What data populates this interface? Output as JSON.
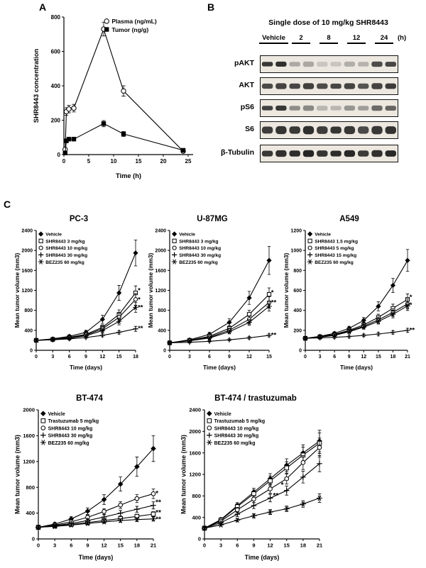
{
  "panels": {
    "a": "A",
    "b": "B",
    "c": "C"
  },
  "panel_b": {
    "title": "Single dose of 10 mg/kg SHR8443",
    "lanes": [
      "Vehicle",
      "2",
      "8",
      "12",
      "24"
    ],
    "lane_unit": "(h)",
    "proteins": [
      "pAKT",
      "AKT",
      "pS6",
      "S6",
      "β-Tubulin"
    ],
    "band_intensities": {
      "pAKT": [
        0.95,
        0.3,
        0.18,
        0.28,
        0.8
      ],
      "AKT": [
        0.85,
        0.8,
        0.82,
        0.8,
        0.85
      ],
      "pS6": [
        0.9,
        0.45,
        0.25,
        0.4,
        0.65
      ],
      "S6": [
        0.92,
        0.88,
        0.9,
        0.85,
        0.9
      ],
      "β-Tubulin": [
        0.95,
        0.93,
        0.95,
        0.93,
        0.95
      ]
    }
  },
  "chart_data": [
    {
      "id": "pk-curve",
      "type": "line",
      "title": "",
      "xlabel": "Time (h)",
      "ylabel": "SHR8443 concentration",
      "xlim": [
        0,
        26
      ],
      "ylim": [
        0,
        800
      ],
      "xticks": [
        0,
        5,
        10,
        15,
        20,
        25
      ],
      "yticks": [
        0,
        200,
        400,
        600,
        800
      ],
      "legend_position": "top-inside",
      "series": [
        {
          "name": "Plasma (ng/mL)",
          "marker": "circle-open",
          "x": [
            0.25,
            0.5,
            1,
            2,
            8,
            12,
            24
          ],
          "values": [
            30,
            250,
            265,
            270,
            730,
            370,
            20
          ],
          "err": [
            8,
            22,
            22,
            22,
            40,
            30,
            8
          ]
        },
        {
          "name": "Tumor (ng/g)",
          "marker": "square-filled",
          "x": [
            0.25,
            0.5,
            1,
            2,
            8,
            12,
            24
          ],
          "values": [
            10,
            80,
            90,
            90,
            180,
            120,
            25
          ],
          "err": [
            4,
            10,
            10,
            10,
            18,
            14,
            6
          ]
        }
      ],
      "annotations": []
    },
    {
      "id": "pc3",
      "type": "line",
      "title": "PC-3",
      "xlabel": "Time (days)",
      "ylabel": "Mean tumor volume (mm3)",
      "xlim": [
        0,
        18
      ],
      "ylim": [
        0,
        2400
      ],
      "xticks": [
        0,
        3,
        6,
        9,
        12,
        15,
        18
      ],
      "yticks": [
        0,
        400,
        800,
        1200,
        1600,
        2000,
        2400
      ],
      "x": [
        0,
        3,
        6,
        9,
        12,
        15,
        18
      ],
      "legend_position": "top-left",
      "series": [
        {
          "name": "Vehicle",
          "marker": "diamond-filled",
          "values": [
            200,
            230,
            280,
            360,
            620,
            1150,
            1950
          ],
          "err": [
            20,
            25,
            30,
            40,
            80,
            150,
            260
          ]
        },
        {
          "name": "SHR8443 3 mg/kg",
          "marker": "square-open",
          "values": [
            200,
            220,
            260,
            320,
            460,
            720,
            1150
          ],
          "err": [
            20,
            22,
            26,
            32,
            50,
            90,
            140
          ]
        },
        {
          "name": "SHR8443 10 mg/kg",
          "marker": "circle-open",
          "values": [
            200,
            218,
            252,
            305,
            430,
            660,
            1020
          ],
          "err": [
            20,
            22,
            25,
            30,
            45,
            80,
            120
          ]
        },
        {
          "name": "SHR8443 30 mg/kg",
          "marker": "plus",
          "values": [
            200,
            210,
            228,
            255,
            300,
            360,
            430
          ],
          "err": [
            20,
            20,
            22,
            24,
            28,
            35,
            50
          ]
        },
        {
          "name": "BEZ235 60 mg/kg",
          "marker": "asterisk",
          "values": [
            200,
            215,
            243,
            290,
            395,
            580,
            860
          ],
          "err": [
            20,
            22,
            24,
            28,
            40,
            70,
            100
          ]
        }
      ],
      "annotations": [
        {
          "x": 18.4,
          "y": 1190,
          "text": "*"
        },
        {
          "x": 18.4,
          "y": 1010,
          "text": "*"
        },
        {
          "x": 18.4,
          "y": 850,
          "text": "**"
        },
        {
          "x": 18.4,
          "y": 430,
          "text": "**"
        }
      ]
    },
    {
      "id": "u87mg",
      "type": "line",
      "title": "U-87MG",
      "xlabel": "Time (days)",
      "ylabel": "Mean tumor volume (mm3)",
      "xlim": [
        0,
        15
      ],
      "ylim": [
        0,
        2400
      ],
      "xticks": [
        0,
        3,
        6,
        9,
        12,
        15
      ],
      "yticks": [
        0,
        400,
        800,
        1200,
        1600,
        2000,
        2400
      ],
      "x": [
        0,
        3,
        6,
        9,
        12,
        15
      ],
      "legend_position": "top-left",
      "series": [
        {
          "name": "Vehicle",
          "marker": "diamond-filled",
          "values": [
            150,
            210,
            320,
            560,
            1050,
            1800
          ],
          "err": [
            15,
            25,
            40,
            70,
            130,
            280
          ]
        },
        {
          "name": "SHR8443 3 mg/kg",
          "marker": "square-open",
          "values": [
            150,
            200,
            280,
            440,
            720,
            1120
          ],
          "err": [
            15,
            22,
            32,
            50,
            80,
            130
          ]
        },
        {
          "name": "SHR8443 10 mg/kg",
          "marker": "circle-open",
          "values": [
            150,
            195,
            260,
            400,
            620,
            960
          ],
          "err": [
            15,
            20,
            28,
            45,
            70,
            110
          ]
        },
        {
          "name": "SHR8443 30 mg/kg",
          "marker": "plus",
          "values": [
            150,
            160,
            180,
            210,
            250,
            300
          ],
          "err": [
            15,
            16,
            18,
            20,
            24,
            30
          ]
        },
        {
          "name": "BEZ235 60 mg/kg",
          "marker": "asterisk",
          "values": [
            150,
            190,
            245,
            370,
            560,
            880
          ],
          "err": [
            15,
            19,
            26,
            40,
            60,
            95
          ]
        }
      ],
      "annotations": [
        {
          "x": 15.3,
          "y": 1150,
          "text": "*"
        },
        {
          "x": 15.3,
          "y": 950,
          "text": "**"
        },
        {
          "x": 15.3,
          "y": 300,
          "text": "**"
        }
      ]
    },
    {
      "id": "a549",
      "type": "line",
      "title": "A549",
      "xlabel": "Time (days)",
      "ylabel": "Mean tumor volume (mm3)",
      "xlim": [
        0,
        21
      ],
      "ylim": [
        0,
        1200
      ],
      "xticks": [
        0,
        3,
        6,
        9,
        12,
        15,
        18,
        21
      ],
      "yticks": [
        0,
        200,
        400,
        600,
        800,
        1000,
        1200
      ],
      "x": [
        0,
        3,
        6,
        9,
        12,
        15,
        18,
        21
      ],
      "legend_position": "top-left",
      "series": [
        {
          "name": "Vehicle",
          "marker": "diamond-filled",
          "values": [
            120,
            140,
            170,
            220,
            300,
            440,
            650,
            900
          ],
          "err": [
            10,
            12,
            15,
            20,
            28,
            45,
            70,
            110
          ]
        },
        {
          "name": "SHR8443 1.5 mg/kg",
          "marker": "square-open",
          "values": [
            120,
            136,
            160,
            200,
            255,
            330,
            420,
            510
          ],
          "err": [
            10,
            12,
            14,
            18,
            24,
            32,
            42,
            55
          ]
        },
        {
          "name": "SHR8443 5 mg/kg",
          "marker": "circle-open",
          "values": [
            120,
            133,
            155,
            192,
            242,
            305,
            380,
            465
          ],
          "err": [
            10,
            11,
            13,
            17,
            22,
            28,
            38,
            50
          ]
        },
        {
          "name": "SHR8443 15 mg/kg",
          "marker": "plus",
          "values": [
            120,
            124,
            130,
            138,
            150,
            163,
            180,
            200
          ],
          "err": [
            10,
            10,
            11,
            12,
            13,
            15,
            17,
            20
          ]
        },
        {
          "name": "BEZ235 60 mg/kg",
          "marker": "asterisk",
          "values": [
            120,
            131,
            150,
            186,
            232,
            290,
            360,
            445
          ],
          "err": [
            10,
            11,
            13,
            16,
            21,
            27,
            35,
            46
          ]
        }
      ],
      "annotations": [
        {
          "x": 21.4,
          "y": 530,
          "text": "*"
        },
        {
          "x": 21.4,
          "y": 450,
          "text": "*"
        },
        {
          "x": 21.4,
          "y": 200,
          "text": "**"
        }
      ]
    },
    {
      "id": "bt474",
      "type": "line",
      "title": "BT-474",
      "xlabel": "Time (days)",
      "ylabel": "Mean tumor volume (mm3)",
      "xlim": [
        0,
        21
      ],
      "ylim": [
        0,
        2000
      ],
      "xticks": [
        0,
        3,
        6,
        9,
        12,
        15,
        18,
        21
      ],
      "yticks": [
        0,
        400,
        800,
        1200,
        1600,
        2000
      ],
      "x": [
        0,
        3,
        6,
        9,
        12,
        15,
        18,
        21
      ],
      "legend_position": "top-left",
      "series": [
        {
          "name": "Vehicle",
          "marker": "diamond-filled",
          "values": [
            180,
            230,
            310,
            430,
            610,
            850,
            1120,
            1400
          ],
          "err": [
            18,
            25,
            35,
            50,
            75,
            110,
            150,
            200
          ]
        },
        {
          "name": "Trastuzumab 5 mg/kg",
          "marker": "square-open",
          "values": [
            180,
            200,
            225,
            255,
            285,
            315,
            350,
            385
          ],
          "err": [
            18,
            19,
            21,
            23,
            26,
            29,
            33,
            38
          ]
        },
        {
          "name": "SHR8443 10 mg/kg",
          "marker": "circle-open",
          "values": [
            180,
            215,
            265,
            335,
            425,
            525,
            625,
            700
          ],
          "err": [
            18,
            21,
            26,
            33,
            42,
            52,
            62,
            75
          ]
        },
        {
          "name": "SHR8443 30 mg/kg",
          "marker": "plus",
          "values": [
            180,
            205,
            240,
            285,
            340,
            400,
            460,
            520
          ],
          "err": [
            18,
            20,
            24,
            28,
            34,
            40,
            46,
            55
          ]
        },
        {
          "name": "BEZ235 60 mg/kg",
          "marker": "asterisk",
          "values": [
            180,
            195,
            215,
            240,
            265,
            285,
            300,
            310
          ],
          "err": [
            18,
            19,
            21,
            23,
            25,
            28,
            30,
            33
          ]
        }
      ],
      "annotations": [
        {
          "x": 21.4,
          "y": 700,
          "text": "*"
        },
        {
          "x": 21.4,
          "y": 560,
          "text": "**"
        },
        {
          "x": 21.4,
          "y": 400,
          "text": "**"
        },
        {
          "x": 21.4,
          "y": 300,
          "text": "**"
        }
      ]
    },
    {
      "id": "bt474-trastuzumab",
      "type": "line",
      "title": "BT-474 / trastuzumab",
      "xlabel": "Time (days)",
      "ylabel": "Mean tumor volume (mm3)",
      "xlim": [
        0,
        21
      ],
      "ylim": [
        0,
        2400
      ],
      "xticks": [
        0,
        3,
        6,
        9,
        12,
        15,
        18,
        21
      ],
      "yticks": [
        0,
        400,
        800,
        1200,
        1600,
        2000,
        2400
      ],
      "x": [
        0,
        3,
        6,
        9,
        12,
        15,
        18,
        21
      ],
      "legend_position": "top-left",
      "series": [
        {
          "name": "Vehicle",
          "marker": "diamond-filled",
          "values": [
            200,
            360,
            620,
            870,
            1120,
            1370,
            1600,
            1820
          ],
          "err": [
            20,
            35,
            55,
            75,
            95,
            120,
            150,
            200
          ]
        },
        {
          "name": "Trastuzumab 5 mg/kg",
          "marker": "square-open",
          "values": [
            200,
            350,
            600,
            840,
            1080,
            1320,
            1560,
            1780
          ],
          "err": [
            20,
            33,
            52,
            72,
            92,
            115,
            145,
            190
          ]
        },
        {
          "name": "SHR8443 10 mg/kg",
          "marker": "circle-open",
          "values": [
            200,
            330,
            540,
            740,
            930,
            1120,
            1420,
            1700
          ],
          "err": [
            20,
            30,
            48,
            65,
            82,
            100,
            130,
            175
          ]
        },
        {
          "name": "SHR8443 30 mg/kg",
          "marker": "plus",
          "values": [
            200,
            300,
            460,
            620,
            760,
            900,
            1150,
            1400
          ],
          "err": [
            20,
            28,
            42,
            56,
            70,
            85,
            110,
            150
          ]
        },
        {
          "name": "BEZ235 60 mg/kg",
          "marker": "asterisk",
          "values": [
            200,
            260,
            350,
            430,
            500,
            560,
            650,
            760
          ],
          "err": [
            20,
            24,
            32,
            40,
            46,
            52,
            62,
            80
          ]
        }
      ],
      "annotations": [
        {
          "x": 14.2,
          "y": 1000,
          "text": "*",
          "anchor": "middle"
        },
        {
          "x": 13.0,
          "y": 800,
          "text": "**",
          "anchor": "middle"
        }
      ]
    }
  ]
}
